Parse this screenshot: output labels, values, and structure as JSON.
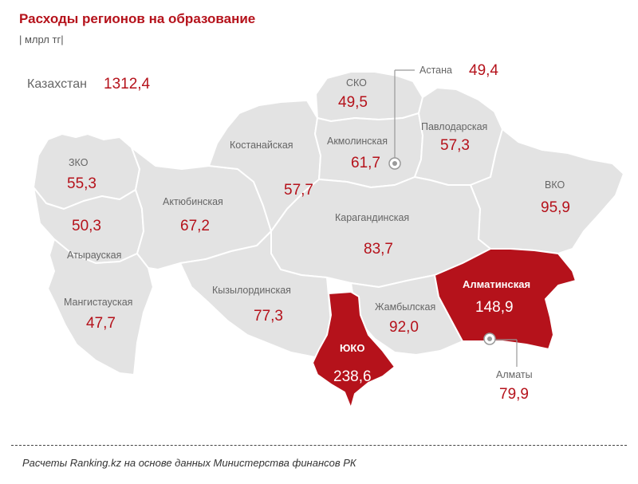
{
  "title": "Расходы регионов на образование",
  "units": "| млрл тг|",
  "total": {
    "label": "Казахстан",
    "value": "1312,4"
  },
  "colors": {
    "accent": "#b5121b",
    "region_fill": "#e3e3e3",
    "region_border": "#ffffff"
  },
  "regions": {
    "zko": {
      "name": "ЗКО",
      "value": "55,3"
    },
    "atyrau": {
      "name": "Атырауская",
      "value": "50,3"
    },
    "mangistau": {
      "name": "Мангистауская",
      "value": "47,7"
    },
    "aktobe": {
      "name": "Актюбинская",
      "value": "67,2"
    },
    "kostanay": {
      "name": "Костанайская",
      "value": "57,7"
    },
    "sko": {
      "name": "СКО",
      "value": "49,5"
    },
    "akmola": {
      "name": "Акмолинская",
      "value": "61,7"
    },
    "pavlodar": {
      "name": "Павлодарская",
      "value": "57,3"
    },
    "vko": {
      "name": "ВКО",
      "value": "95,9"
    },
    "karaganda": {
      "name": "Карагандинская",
      "value": "83,7"
    },
    "kyzylorda": {
      "name": "Кызылординская",
      "value": "77,3"
    },
    "zhambyl": {
      "name": "Жамбылская",
      "value": "92,0"
    },
    "almaty_region": {
      "name": "Алматинская",
      "value": "148,9"
    },
    "yuko": {
      "name": "ЮКО",
      "value": "238,6"
    }
  },
  "cities": {
    "astana": {
      "name": "Астана",
      "value": "49,4"
    },
    "almaty": {
      "name": "Алматы",
      "value": "79,9"
    }
  },
  "footer": "Расчеты Ranking.kz на основе данных Министерства финансов РК"
}
